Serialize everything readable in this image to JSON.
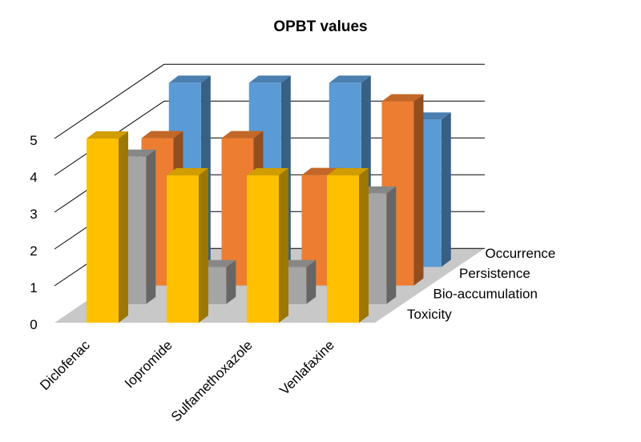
{
  "chart_data": {
    "type": "bar",
    "title": "OPBT values",
    "xlabel": "",
    "ylabel": "",
    "ylim": [
      0,
      5
    ],
    "yticks": [
      "0",
      "1",
      "2",
      "3",
      "4",
      "5"
    ],
    "grid": true,
    "categories": [
      "Diclofenac",
      "Iopromide",
      "Sulfamethoxazole",
      "Venlafaxine"
    ],
    "series": [
      {
        "name": "Toxicity",
        "values": [
          5,
          4,
          4,
          4
        ],
        "color": "#FFC000"
      },
      {
        "name": "Bio-accumulation",
        "values": [
          4,
          1,
          1,
          3
        ],
        "color": "#A5A5A5"
      },
      {
        "name": "Persistence",
        "values": [
          4,
          4,
          3,
          5
        ],
        "color": "#ED7D31"
      },
      {
        "name": "Occurrence",
        "values": [
          5,
          5,
          5,
          4
        ],
        "color": "#5B9BD5"
      }
    ]
  }
}
